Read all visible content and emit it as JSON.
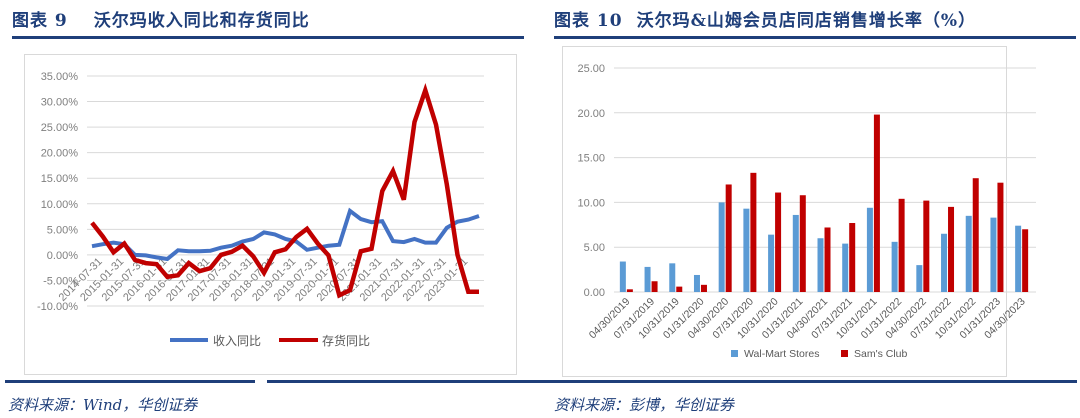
{
  "left_figure": {
    "number": "图表 9",
    "title": "沃尔玛收入同比和存货同比",
    "source": "资料来源：Wind，华创证券"
  },
  "right_figure": {
    "number": "图表 10",
    "title": "沃尔玛&山姆会员店同店销售增长率（%）",
    "source": "资料来源：彭博，华创证券"
  },
  "colors": {
    "title_navy": "#1f3f7a",
    "revenue_blue": "#4472c4",
    "inventory_red": "#c00000",
    "walmart_bar": "#5b9bd5",
    "sams_bar": "#c00000",
    "grid": "#d9d9d9",
    "axis_text": "#7f7f7f"
  },
  "chart_data": [
    {
      "type": "line",
      "title": "沃尔玛收入同比和存货同比",
      "xlabel": "",
      "ylabel": "",
      "ylim": [
        -10,
        35
      ],
      "y_ticks": [
        "35.00%",
        "30.00%",
        "25.00%",
        "20.00%",
        "15.00%",
        "10.00%",
        "5.00%",
        "0.00%",
        "-5.00%",
        "-10.00%"
      ],
      "x_tick_labels": [
        "2014-07-31",
        "2015-01-31",
        "2015-07-31",
        "2016-01-31",
        "2016-07-31",
        "2017-01-31",
        "2017-07-31",
        "2018-01-31",
        "2018-07-31",
        "2019-01-31",
        "2019-07-31",
        "2020-01-31",
        "2020-07-31",
        "2021-01-31",
        "2021-07-31",
        "2022-01-31",
        "2022-07-31",
        "2023-01-31"
      ],
      "grid": true,
      "legend_position": "bottom",
      "point_count": 37,
      "series": [
        {
          "name": "收入同比",
          "color": "#4472c4",
          "values": [
            1.7,
            2.1,
            2.4,
            2.1,
            0.0,
            -0.1,
            -0.5,
            -0.8,
            0.9,
            0.7,
            0.7,
            0.8,
            1.4,
            1.8,
            2.6,
            3.1,
            4.4,
            4.0,
            3.1,
            2.6,
            1.0,
            1.4,
            1.8,
            2.0,
            8.6,
            7.0,
            6.4,
            6.6,
            2.7,
            2.5,
            3.1,
            2.4,
            2.4,
            5.3,
            6.5,
            6.9,
            7.6
          ]
        },
        {
          "name": "存货同比",
          "color": "#c00000",
          "values": [
            6.3,
            3.6,
            0.5,
            2.2,
            -1.0,
            -1.6,
            -1.8,
            -4.3,
            -4.0,
            -1.6,
            -3.2,
            -2.6,
            0.0,
            0.6,
            1.8,
            -0.3,
            -3.5,
            0.5,
            1.1,
            3.5,
            5.1,
            2.2,
            -0.1,
            -7.9,
            -6.9,
            0.7,
            1.2,
            12.5,
            16.4,
            10.8,
            26.0,
            32.2,
            25.5,
            13.8,
            0.0,
            -7.2,
            -7.2
          ]
        }
      ]
    },
    {
      "type": "bar",
      "title": "沃尔玛&山姆会员店同店销售增长率（%）",
      "xlabel": "",
      "ylabel": "",
      "ylim": [
        0,
        25
      ],
      "y_ticks": [
        "25.00",
        "20.00",
        "15.00",
        "10.00",
        "5.00",
        "0.00"
      ],
      "grid": true,
      "legend_position": "bottom",
      "categories": [
        "04/30/2019",
        "07/31/2019",
        "10/31/2019",
        "01/31/2020",
        "04/30/2020",
        "07/31/2020",
        "10/31/2020",
        "01/31/2021",
        "04/30/2021",
        "07/31/2021",
        "10/31/2021",
        "01/31/2022",
        "04/30/2022",
        "07/31/2022",
        "10/31/2022",
        "01/31/2023",
        "04/30/2023"
      ],
      "series": [
        {
          "name": "Wal-Mart Stores",
          "color": "#5b9bd5",
          "values": [
            3.4,
            2.8,
            3.2,
            1.9,
            10.0,
            9.3,
            6.4,
            8.6,
            6.0,
            5.4,
            9.4,
            5.6,
            3.0,
            6.5,
            8.5,
            8.3,
            7.4
          ]
        },
        {
          "name": "Sam's Club",
          "color": "#c00000",
          "values": [
            0.3,
            1.2,
            0.6,
            0.8,
            12.0,
            13.3,
            11.1,
            10.8,
            7.2,
            7.7,
            19.8,
            10.4,
            10.2,
            9.5,
            12.7,
            12.2,
            7.0
          ]
        }
      ]
    }
  ]
}
